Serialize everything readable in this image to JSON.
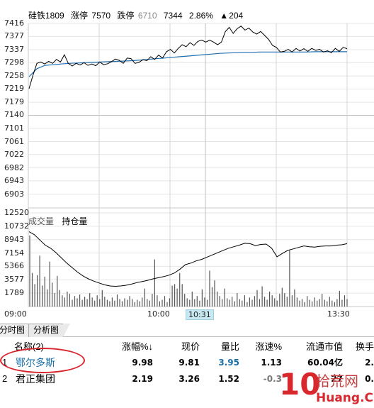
{
  "header": {
    "symbol": "硅铁1809",
    "limit_up_label": "涨停",
    "limit_up_value": "7570",
    "limit_down_label": "跌停",
    "limit_down_value": "6710",
    "last_price": "7344",
    "change_pct": "2.86%",
    "change_arrow": "▲",
    "change_value": "204"
  },
  "volume_panel": {
    "volume_label": "成交量",
    "open_interest_label": "持仓量"
  },
  "colors": {
    "price_line": "#000000",
    "avg_line": "#1f6fb0",
    "oi_line": "#000000",
    "volume_bars": "#555555",
    "highlight": "#d9272e"
  },
  "chart_data": {
    "type": "line",
    "price_axis": [
      "7416",
      "7377",
      "7337",
      "7298",
      "7258",
      "7219",
      "7179",
      "7140",
      "7101",
      "7061",
      "7022",
      "6982",
      "6943",
      "6903"
    ],
    "volume_axis": [
      "12520",
      "10732",
      "8943",
      "7154",
      "5366",
      "3577",
      "1789"
    ],
    "time_labels": [
      "09:00",
      "10:00",
      "10:31",
      "13:30"
    ],
    "cursor_time": "10:31",
    "ylim_price": [
      6883,
      7416
    ],
    "ylim_volume": [
      0,
      12520
    ],
    "series": [
      {
        "values": [
          7220,
          7260,
          7296,
          7300,
          7294,
          7302,
          7296,
          7308,
          7300,
          7322,
          7296,
          7288,
          7296,
          7291,
          7298,
          7290,
          7294,
          7289,
          7300,
          7292,
          7295,
          7301,
          7309,
          7305,
          7296,
          7312,
          7310,
          7296,
          7299,
          7307,
          7304,
          7316,
          7308,
          7321,
          7312,
          7331,
          7338,
          7327,
          7341,
          7352,
          7346,
          7358,
          7350,
          7362,
          7366,
          7360,
          7366,
          7360,
          7352,
          7360,
          7392,
          7404,
          7386,
          7400,
          7408,
          7396,
          7402,
          7390,
          7384,
          7392,
          7380,
          7368,
          7350,
          7344,
          7330,
          7332,
          7338,
          7330,
          7341,
          7333,
          7340,
          7332,
          7341,
          7335,
          7338,
          7330,
          7334,
          7328,
          7341,
          7332,
          7344,
          7340
        ]
      },
      {
        "values": [
          7256,
          7280,
          7290,
          7292,
          7294,
          7296,
          7297,
          7298,
          7299,
          7300,
          7301,
          7302,
          7303,
          7304,
          7306,
          7308,
          7310,
          7312,
          7314,
          7316,
          7318,
          7320,
          7322,
          7324,
          7326,
          7327,
          7328,
          7329,
          7329,
          7330,
          7330,
          7330,
          7330,
          7330,
          7330,
          7330,
          7331,
          7331,
          7331,
          7331,
          7331
        ]
      }
    ],
    "open_interest": [
      10000,
      9600,
      8900,
      8200,
      7800,
      7200,
      6500,
      5800,
      5200,
      4600,
      4100,
      3700,
      3400,
      3150,
      2900,
      2750,
      2700,
      2750,
      2850,
      3000,
      3200,
      3350,
      3500,
      3700,
      3850,
      4000,
      4200,
      4500,
      5000,
      5600,
      5800,
      6100,
      6300,
      6600,
      6900,
      7200,
      7500,
      7800,
      8000,
      8200,
      8450,
      8400,
      8150,
      8300,
      8350,
      7800,
      6650,
      7100,
      7500,
      7700,
      7900,
      8100,
      8000,
      7950,
      8050,
      8100,
      8100,
      8200,
      8250,
      8400
    ],
    "volume": [
      9500,
      4500,
      3000,
      4200,
      6800,
      2800,
      4000,
      2300,
      6000,
      3200,
      1800,
      4100,
      2200,
      1500,
      1200,
      2000,
      1700,
      900,
      1400,
      1100,
      1600,
      900,
      1300,
      1000,
      1800,
      1200,
      800,
      1500,
      1000,
      2200,
      1300,
      900,
      700,
      1200,
      800,
      1600,
      1000,
      700,
      1100,
      900,
      1400,
      1000,
      600,
      900,
      700,
      1200,
      2400,
      1000,
      800,
      1700,
      6300,
      1500,
      700,
      900,
      1400,
      600,
      1100,
      2800,
      3000,
      2400,
      4500,
      3000,
      1700,
      1100,
      900,
      2000,
      1000,
      1400,
      800,
      2300,
      1200,
      900,
      4800,
      2600,
      3500,
      2000,
      1400,
      1000,
      2400,
      1100,
      900,
      1300,
      700,
      1800,
      1000,
      800,
      1500,
      600,
      1200,
      900,
      1400,
      2200,
      1000,
      2700,
      1300,
      900,
      2000,
      1500,
      1100,
      800,
      1700,
      2500,
      1800,
      1300,
      7500,
      1500,
      2300,
      1200,
      800,
      1000,
      600,
      1400,
      900,
      700,
      1200,
      800,
      1000,
      1700,
      900,
      700,
      1300,
      800,
      600,
      1000,
      2100,
      900,
      1500,
      1000
    ]
  },
  "tabs": [
    "分时图",
    "分析图"
  ],
  "table": {
    "headers": [
      "名称(2)",
      "涨幅%↓",
      "现价",
      "量比",
      "涨速%",
      "流通市值",
      "换手"
    ],
    "rows": [
      {
        "index": "1",
        "name": "鄂尔多斯",
        "change_pct": "9.98",
        "price": "9.81",
        "volume_ratio": "3.95",
        "speed": "1.13",
        "market_cap": "60.04亿",
        "turnover": "2."
      },
      {
        "index": "2",
        "name": "君正集团",
        "change_pct": "2.19",
        "price": "3.26",
        "volume_ratio": "1.52",
        "speed": "-0.3",
        "market_cap": "27",
        "turnover": "0."
      }
    ]
  },
  "watermark": {
    "number": "10",
    "cn_text": "拾荒网",
    "domain": "Huang.CN"
  }
}
